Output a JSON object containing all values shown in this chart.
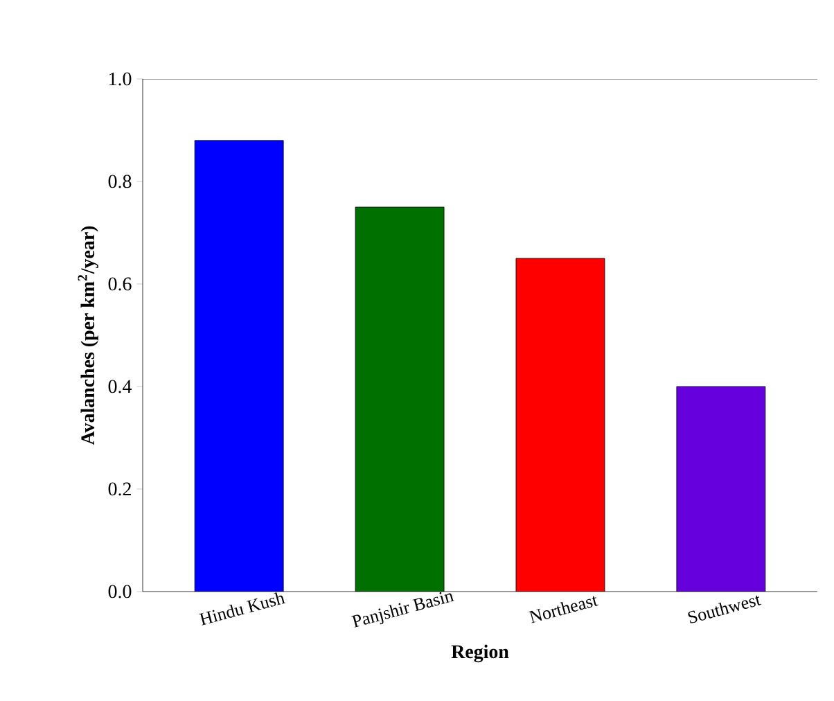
{
  "chart_data": {
    "type": "bar",
    "xlabel": "Region",
    "ylabel": "Avalanches (per km$^{2}$/year)",
    "categories": [
      "Hindu Kush",
      "Panjshir Basin",
      "Northeast",
      "Southwest"
    ],
    "values": [
      0.88,
      0.75,
      0.65,
      0.4
    ],
    "colors": [
      "#0000ff",
      "#007000",
      "#ff0000",
      "#6600dd"
    ],
    "ylim": [
      0,
      1.0
    ],
    "yticks": [
      {
        "value": 0,
        "label": "0.0"
      },
      {
        "value": 0.2,
        "label": "0.2"
      },
      {
        "value": 0.4,
        "label": "0.4"
      },
      {
        "value": 0.6,
        "label": "0.6"
      },
      {
        "value": 0.8,
        "label": "0.8"
      },
      {
        "value": 1.0,
        "label": "1.0"
      }
    ]
  }
}
